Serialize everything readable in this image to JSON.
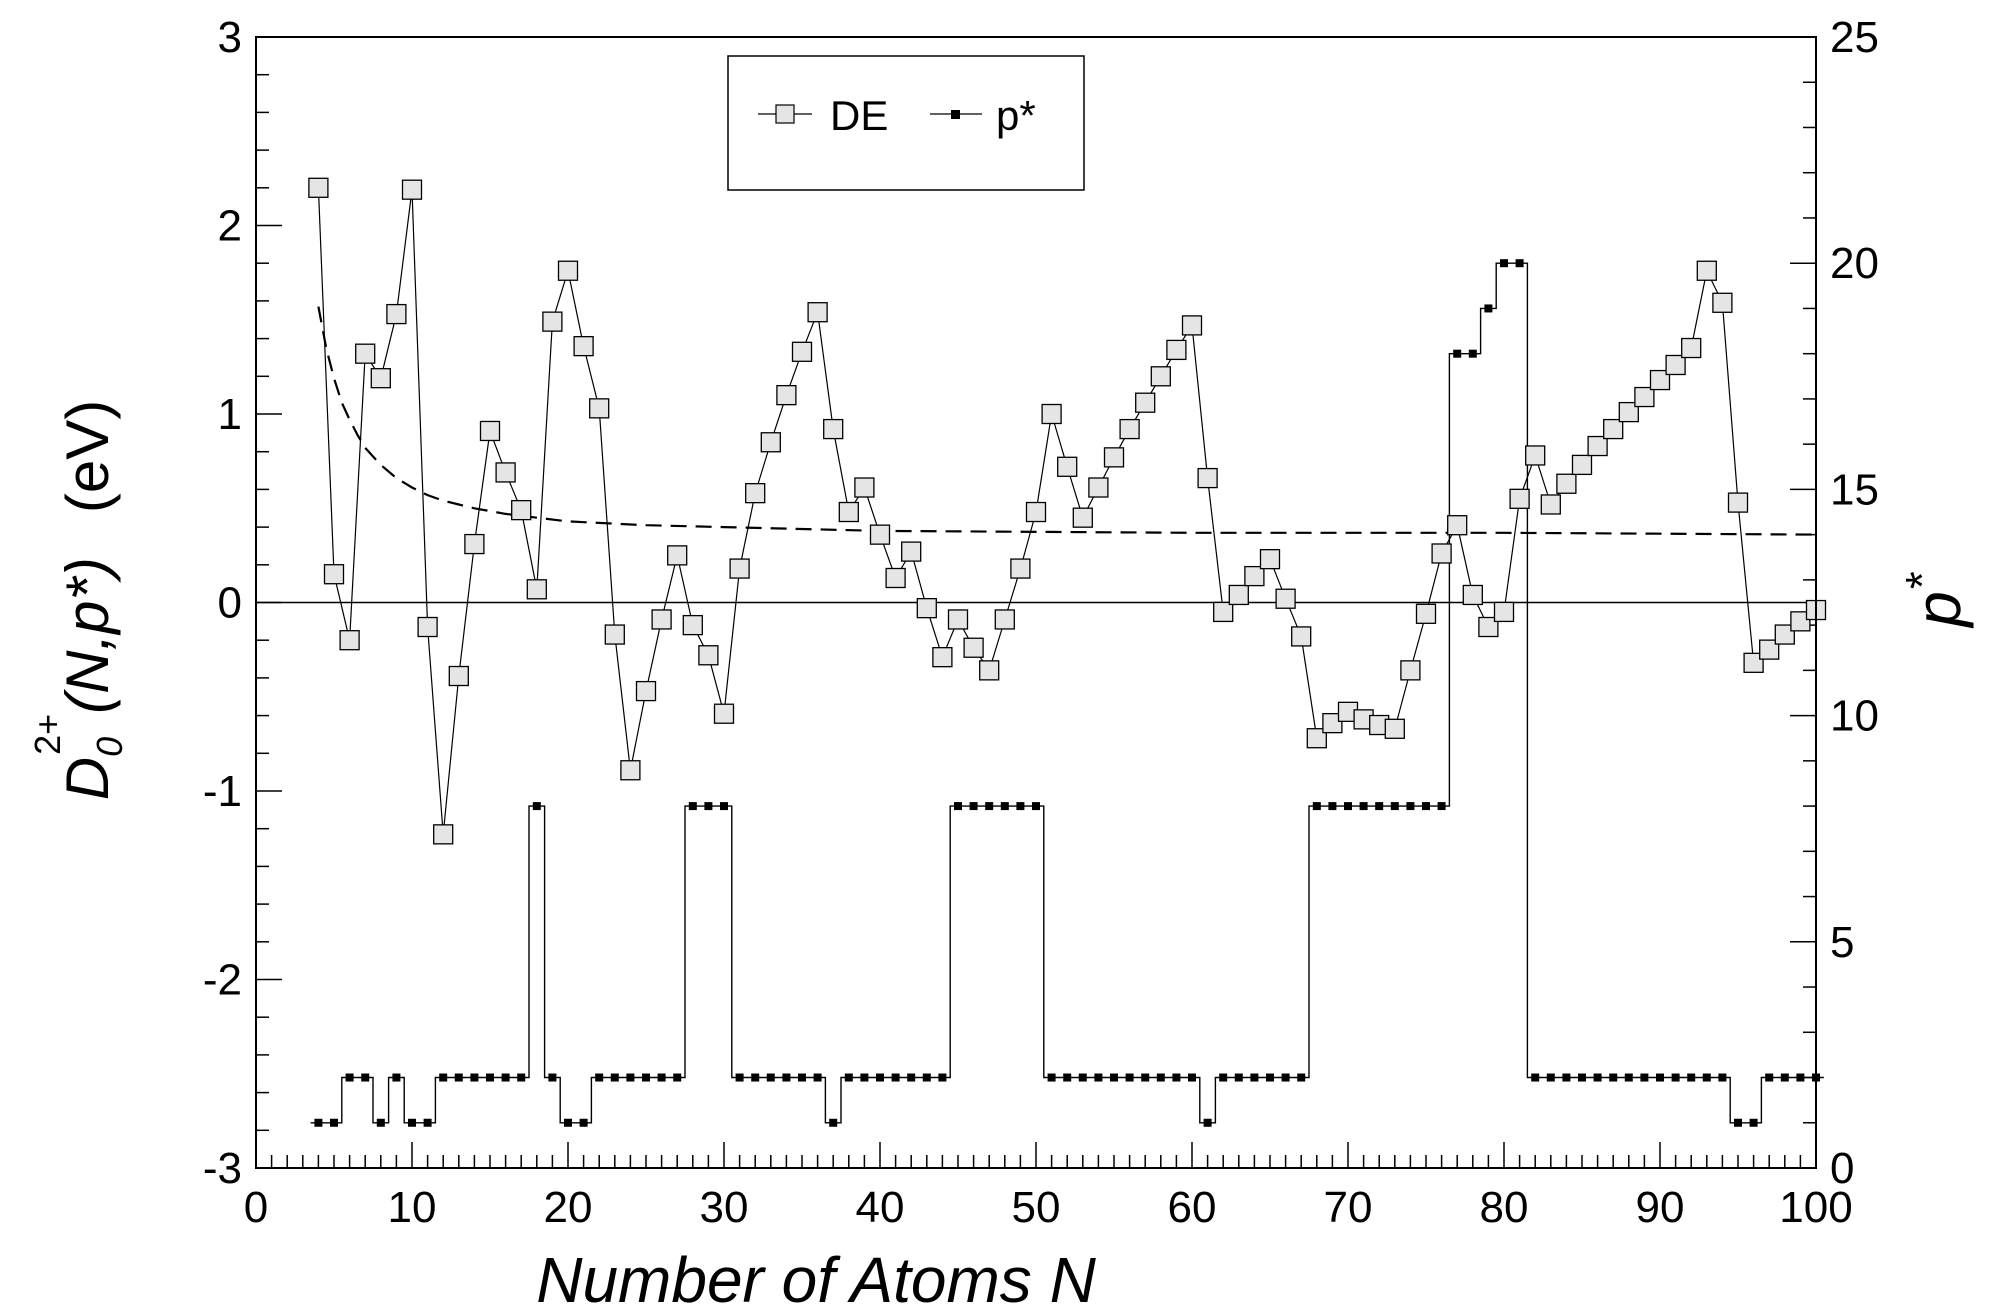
{
  "chart_data": {
    "type": "line",
    "xlabel": "Number of Atoms N",
    "ylabel_left": {
      "main": "D",
      "sup": "2+",
      "sub": "0",
      "args": "(N,p*)",
      "unit": "(eV)"
    },
    "ylabel_right": {
      "main": "p",
      "sup": "*"
    },
    "x_ticks": [
      "0",
      "10",
      "20",
      "30",
      "40",
      "50",
      "60",
      "70",
      "80",
      "90",
      "100"
    ],
    "y_left_ticks": [
      "3",
      "2",
      "1",
      "0",
      "-1",
      "-2",
      "-3"
    ],
    "y_right_ticks": [
      "25",
      "20",
      "15",
      "10",
      "5",
      "0"
    ],
    "xlim": [
      0,
      100
    ],
    "ylim_left": [
      -3,
      3
    ],
    "ylim_right": [
      0,
      25
    ],
    "legend": {
      "position": "top",
      "entries": [
        "DE",
        "p*"
      ]
    },
    "reference_line_y": 0,
    "series": [
      {
        "name": "DE",
        "axis": "left",
        "marker": "open-square",
        "x": [
          4,
          5,
          6,
          7,
          8,
          9,
          10,
          11,
          12,
          13,
          14,
          15,
          16,
          17,
          18,
          19,
          20,
          21,
          22,
          23,
          24,
          25,
          26,
          27,
          28,
          29,
          30,
          31,
          32,
          33,
          34,
          35,
          36,
          37,
          38,
          39,
          40,
          41,
          42,
          43,
          44,
          45,
          46,
          47,
          48,
          49,
          50,
          51,
          52,
          53,
          54,
          55,
          56,
          57,
          58,
          59,
          60,
          61,
          62,
          63,
          64,
          65,
          66,
          67,
          68,
          69,
          70,
          71,
          72,
          73,
          74,
          75,
          76,
          77,
          78,
          79,
          80,
          81,
          82,
          83,
          84,
          85,
          86,
          87,
          88,
          89,
          90,
          91,
          92,
          93,
          94,
          95,
          96,
          97,
          98,
          99,
          100
        ],
        "y": [
          2.2,
          0.15,
          -0.2,
          1.32,
          1.19,
          1.53,
          2.19,
          -0.13,
          -1.23,
          -0.39,
          0.31,
          0.91,
          0.69,
          0.49,
          0.07,
          1.49,
          1.76,
          1.36,
          1.03,
          -0.17,
          -0.89,
          -0.47,
          -0.09,
          0.25,
          -0.12,
          -0.28,
          -0.59,
          0.18,
          0.58,
          0.85,
          1.1,
          1.33,
          1.54,
          0.92,
          0.48,
          0.61,
          0.36,
          0.13,
          0.27,
          -0.03,
          -0.29,
          -0.09,
          -0.24,
          -0.36,
          -0.09,
          0.18,
          0.48,
          1.0,
          0.72,
          0.45,
          0.61,
          0.77,
          0.92,
          1.06,
          1.2,
          1.34,
          1.47,
          0.66,
          -0.05,
          0.04,
          0.14,
          0.23,
          0.02,
          -0.18,
          -0.72,
          -0.64,
          -0.58,
          -0.62,
          -0.65,
          -0.67,
          -0.36,
          -0.06,
          0.26,
          0.41,
          0.04,
          -0.13,
          -0.05,
          0.55,
          0.78,
          0.52,
          0.63,
          0.73,
          0.83,
          0.92,
          1.01,
          1.09,
          1.18,
          1.26,
          1.35,
          1.76,
          1.59,
          0.53,
          -0.32,
          -0.25,
          -0.17,
          -0.1,
          -0.04
        ]
      },
      {
        "name": "p*",
        "axis": "right",
        "marker": "small-filled-square",
        "x": [
          4,
          5,
          6,
          7,
          8,
          9,
          10,
          11,
          12,
          13,
          14,
          15,
          16,
          17,
          18,
          19,
          20,
          21,
          22,
          23,
          24,
          25,
          26,
          27,
          28,
          29,
          30,
          31,
          32,
          33,
          34,
          35,
          36,
          37,
          38,
          39,
          40,
          41,
          42,
          43,
          44,
          45,
          46,
          47,
          48,
          49,
          50,
          51,
          52,
          53,
          54,
          55,
          56,
          57,
          58,
          59,
          60,
          61,
          62,
          63,
          64,
          65,
          66,
          67,
          68,
          69,
          70,
          71,
          72,
          73,
          74,
          75,
          76,
          77,
          78,
          79,
          80,
          81,
          82,
          83,
          84,
          85,
          86,
          87,
          88,
          89,
          90,
          91,
          92,
          93,
          94,
          95,
          96,
          97,
          98,
          99,
          100
        ],
        "y": [
          1,
          1,
          2,
          2,
          1,
          2,
          1,
          1,
          2,
          2,
          2,
          2,
          2,
          2,
          8,
          2,
          1,
          1,
          2,
          2,
          2,
          2,
          2,
          2,
          8,
          8,
          8,
          2,
          2,
          2,
          2,
          2,
          2,
          1,
          2,
          2,
          2,
          2,
          2,
          2,
          2,
          8,
          8,
          8,
          8,
          8,
          8,
          2,
          2,
          2,
          2,
          2,
          2,
          2,
          2,
          2,
          2,
          1,
          2,
          2,
          2,
          2,
          2,
          2,
          8,
          8,
          8,
          8,
          8,
          8,
          8,
          8,
          8,
          18,
          18,
          19,
          20,
          20,
          2,
          2,
          2,
          2,
          2,
          2,
          2,
          2,
          2,
          2,
          2,
          2,
          2,
          1,
          1,
          2,
          2,
          2,
          2
        ]
      },
      {
        "name": "",
        "axis": "left",
        "style": "dashed",
        "x": [
          4,
          4.5,
          5,
          5.5,
          6,
          6.5,
          7,
          8,
          9,
          10,
          11,
          12,
          13,
          14,
          16,
          18,
          20,
          25,
          30,
          40,
          60,
          80,
          100
        ],
        "y": [
          1.57,
          1.35,
          1.19,
          1.06,
          0.97,
          0.89,
          0.82,
          0.73,
          0.66,
          0.61,
          0.57,
          0.54,
          0.52,
          0.5,
          0.47,
          0.45,
          0.43,
          0.41,
          0.4,
          0.38,
          0.37,
          0.37,
          0.36
        ]
      }
    ]
  }
}
